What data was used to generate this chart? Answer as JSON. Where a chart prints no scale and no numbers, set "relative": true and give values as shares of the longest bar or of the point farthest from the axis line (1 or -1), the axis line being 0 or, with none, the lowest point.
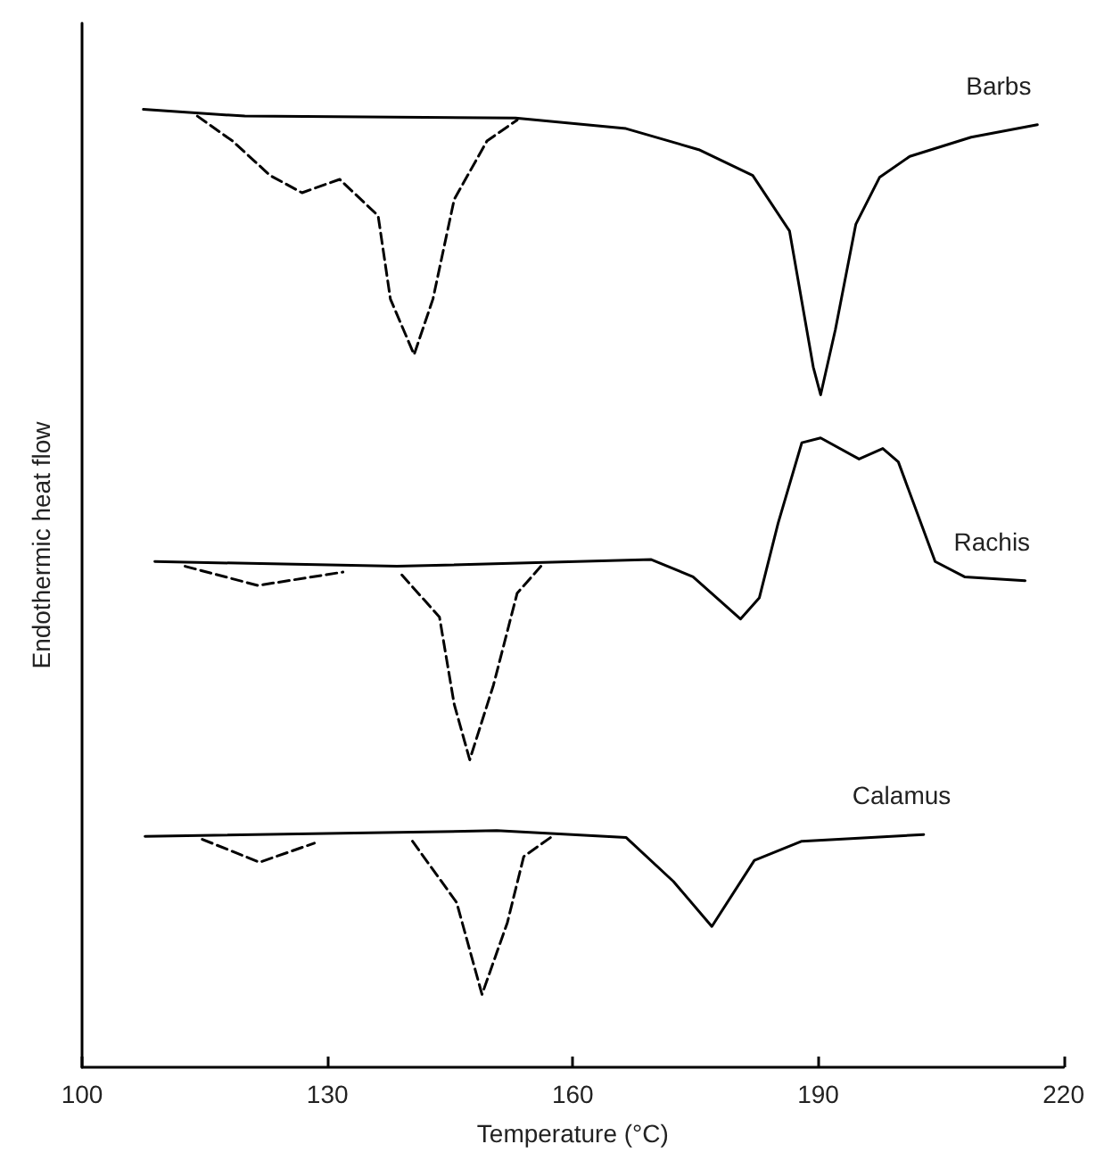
{
  "chart_data": {
    "type": "line",
    "relative": true,
    "xlabel": "Temperature (°C)",
    "ylabel": "Endothermic heat flow",
    "xlim": [
      100,
      220
    ],
    "xticks": [
      100,
      130,
      160,
      190,
      220
    ],
    "grid": false,
    "legend": false,
    "marker": "none",
    "series": [
      {
        "name": "Barbs",
        "color": "#000000",
        "line_style": "solid",
        "x": [
          107.5,
          119.9,
          153,
          166.5,
          175.4,
          182,
          186.5,
          189.4,
          190.3,
          192.1,
          194.6,
          197.5,
          201.2,
          208.7,
          216.8
        ],
        "values": [
          1.0,
          0.993,
          0.991,
          0.98,
          0.958,
          0.931,
          0.873,
          0.731,
          0.702,
          0.77,
          0.88,
          0.929,
          0.951,
          0.971,
          0.984
        ]
      },
      {
        "color": "#000000",
        "line_style": "dashed",
        "x": [
          114.1,
          118.4,
          123,
          126.9,
          131.5,
          136.2,
          137.7,
          140.6,
          142.9,
          145.5,
          149.5,
          153.2
        ],
        "values": [
          0.993,
          0.967,
          0.931,
          0.913,
          0.927,
          0.889,
          0.802,
          0.744,
          0.802,
          0.906,
          0.967,
          0.989
        ]
      },
      {
        "name": "Rachis",
        "color": "#000000",
        "line_style": "solid",
        "x": [
          108.9,
          138.5,
          169.6,
          174.7,
          180.5,
          182.8,
          185.1,
          188,
          190.3,
          195,
          197.9,
          199.8,
          204.3,
          207.9,
          215.3
        ],
        "values": [
          0.528,
          0.523,
          0.53,
          0.512,
          0.468,
          0.49,
          0.568,
          0.652,
          0.657,
          0.635,
          0.646,
          0.632,
          0.528,
          0.512,
          0.508
        ]
      },
      {
        "color": "#000000",
        "line_style": "dashed",
        "x": [
          112.6,
          121.5,
          131.9,
          135,
          139.1,
          143.7,
          145.5,
          147.4,
          150.3,
          153.2,
          156.1
        ],
        "values": [
          0.523,
          0.503,
          0.517,
          null,
          0.514,
          0.47,
          0.379,
          0.321,
          0.399,
          0.495,
          0.523
        ]
      },
      {
        "name": "Calamus",
        "color": "#000000",
        "line_style": "solid",
        "x": [
          107.7,
          150.7,
          166.5,
          172.3,
          177,
          182.2,
          188,
          202.9
        ],
        "values": [
          0.241,
          0.247,
          0.24,
          0.194,
          0.147,
          0.216,
          0.236,
          0.243
        ]
      },
      {
        "color": "#000000",
        "line_style": "dashed",
        "x": [
          114.7,
          121.7,
          128.4,
          134,
          140.4,
          145.8,
          148.9,
          152,
          154,
          157.3
        ],
        "values": [
          0.238,
          0.214,
          0.234,
          null,
          0.236,
          0.172,
          0.076,
          0.151,
          0.22,
          0.24
        ]
      }
    ]
  }
}
